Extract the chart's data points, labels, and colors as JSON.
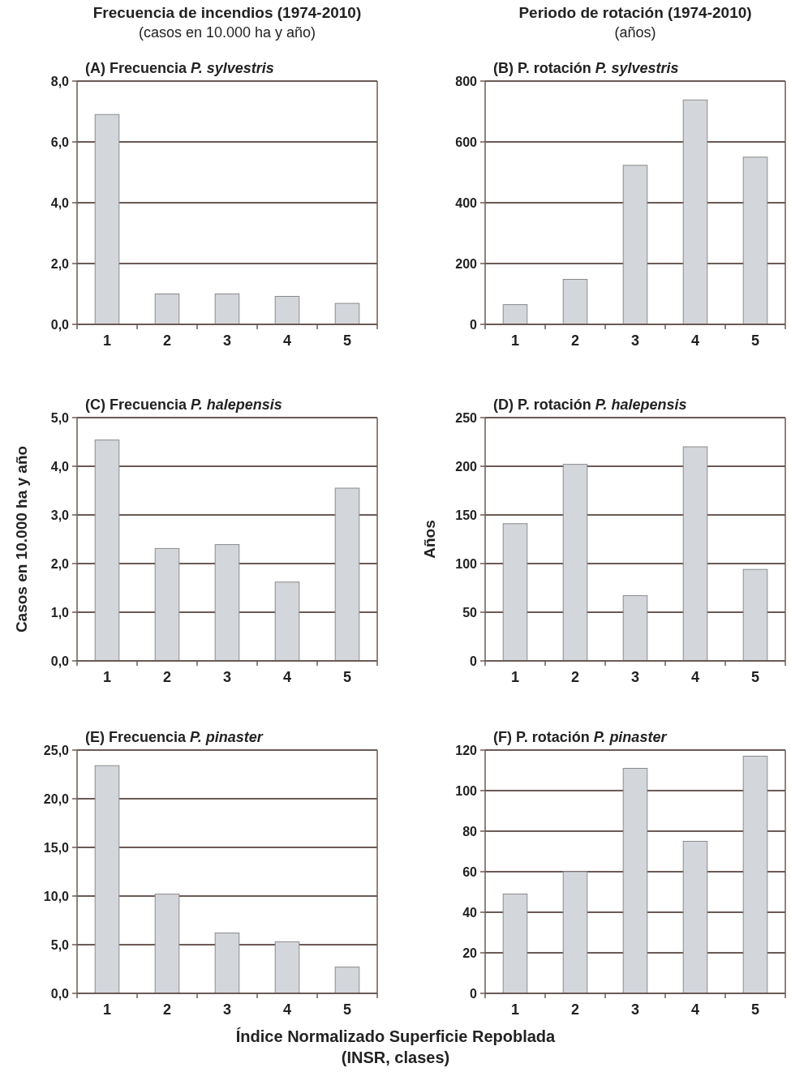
{
  "chart_data": [
    {
      "type": "bar",
      "title": "(A) Frecuencia P. sylvestris",
      "annotations": [
        "Frecuencia de incendios (1974-2010)",
        "(casos en 10.000 ha y año)"
      ],
      "categories": [
        "1",
        "2",
        "3",
        "4",
        "5"
      ],
      "values": [
        6.9,
        1.0,
        1.0,
        0.92,
        0.69
      ],
      "color": "#d3d6db",
      "ylim": [
        0,
        8
      ],
      "yticks": [
        {
          "value": 0,
          "label": "0,0"
        },
        {
          "value": 2,
          "label": "2,0"
        },
        {
          "value": 4,
          "label": "4,0"
        },
        {
          "value": 6,
          "label": "6,0"
        },
        {
          "value": 8,
          "label": "8,0"
        }
      ],
      "grid": "y"
    },
    {
      "type": "bar",
      "title": "(B) P. rotación P. sylvestris",
      "annotations": [
        "Periodo de rotación (1974-2010)",
        "(años)"
      ],
      "categories": [
        "1",
        "2",
        "3",
        "4",
        "5"
      ],
      "values": [
        65,
        148,
        523,
        738,
        550
      ],
      "color": "#d3d6db",
      "ylim": [
        0,
        800
      ],
      "yticks": [
        0,
        200,
        400,
        600,
        800
      ],
      "grid": "y"
    },
    {
      "type": "bar",
      "title": "(C) Frecuencia P. halepensis",
      "ylabel": "Casos en 10.000 ha y año",
      "categories": [
        "1",
        "2",
        "3",
        "4",
        "5"
      ],
      "values": [
        4.54,
        2.31,
        2.39,
        1.62,
        3.55
      ],
      "color": "#d3d6db",
      "ylim": [
        0,
        5
      ],
      "yticks": [
        {
          "value": 0,
          "label": "0,0"
        },
        {
          "value": 1,
          "label": "1,0"
        },
        {
          "value": 2,
          "label": "2,0"
        },
        {
          "value": 3,
          "label": "3,0"
        },
        {
          "value": 4,
          "label": "4,0"
        },
        {
          "value": 5,
          "label": "5,0"
        }
      ],
      "grid": "y"
    },
    {
      "type": "bar",
      "title": "(D) P. rotación P. halepensis",
      "ylabel": "Años",
      "categories": [
        "1",
        "2",
        "3",
        "4",
        "5"
      ],
      "values": [
        141,
        202,
        67,
        220,
        94
      ],
      "color": "#d3d6db",
      "ylim": [
        0,
        250
      ],
      "yticks": [
        0,
        50,
        100,
        150,
        200,
        250
      ],
      "grid": "y"
    },
    {
      "type": "bar",
      "title": "(E) Frecuencia P. pinaster",
      "xlabel": "Índice Normalizado Superficie Repoblada (INSR, clases)",
      "categories": [
        "1",
        "2",
        "3",
        "4",
        "5"
      ],
      "values": [
        23.4,
        10.2,
        6.2,
        5.3,
        2.7
      ],
      "color": "#d3d6db",
      "ylim": [
        0,
        25
      ],
      "yticks": [
        {
          "value": 0,
          "label": "0,0"
        },
        {
          "value": 5,
          "label": "5,0"
        },
        {
          "value": 10,
          "label": "10,0"
        },
        {
          "value": 15,
          "label": "15,0"
        },
        {
          "value": 20,
          "label": "20,0"
        },
        {
          "value": 25,
          "label": "25,0"
        }
      ],
      "grid": "y"
    },
    {
      "type": "bar",
      "title": "(F) P. rotación P. pinaster",
      "categories": [
        "1",
        "2",
        "3",
        "4",
        "5"
      ],
      "values": [
        49,
        60,
        111,
        75,
        117
      ],
      "color": "#d3d6db",
      "ylim": [
        0,
        120
      ],
      "yticks": [
        0,
        20,
        40,
        60,
        80,
        100,
        120
      ],
      "grid": "y"
    }
  ]
}
